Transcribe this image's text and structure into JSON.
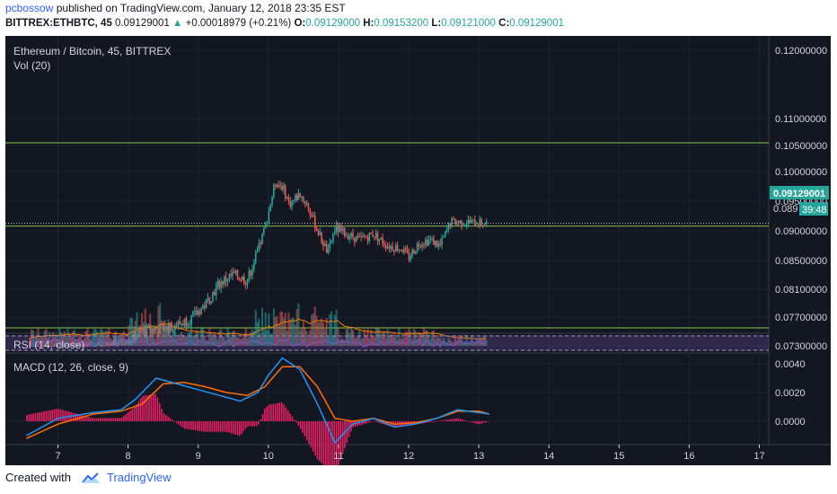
{
  "header": {
    "author": "pcbossow",
    "published": "published on TradingView.com, January 12, 2018 23:35 EST",
    "symbol": "BITTREX:ETHBTC, 45",
    "last": "0.09129001",
    "change": "+0.00018979 (+0.21%)",
    "o_label": "O:",
    "o_value": "0.09129000",
    "h_label": "H:",
    "h_value": "0.09153200",
    "l_label": "L:",
    "l_value": "0.09121000",
    "c_label": "C:",
    "c_value": "0.09129001"
  },
  "panes": {
    "main_title": "Ethereum / Bitcoin, 45, BITTREX",
    "vol_label": "Vol (20)",
    "rsi_label": "RSI (14, close)",
    "macd_label": "MACD (12, 26, close, 9)",
    "price_tag": "0.09129001",
    "time_tag_price": "0.089",
    "time_tag": "39:48"
  },
  "footer": {
    "created": "Created with",
    "brand": "TradingView"
  },
  "colors": {
    "background": "#131722",
    "up": "#26a69a",
    "down": "#ef5350",
    "ma": "#f57c00",
    "macd_line": "#2196f3",
    "signal_line": "#ff6d00",
    "hist": "#e91e63",
    "rsi": "#7e57c2",
    "hline": "#8bc34a"
  },
  "chart_data": {
    "type": "candlestick",
    "symbol": "BITTREX:ETHBTC",
    "interval": "45",
    "x_ticks": [
      "7",
      "8",
      "9",
      "10",
      "11",
      "12",
      "13",
      "14",
      "15",
      "16",
      "17"
    ],
    "price_ticks": [
      "0.12000000",
      "0.11000000",
      "0.10500000",
      "0.10000000",
      "0.09500000",
      "0.09000000",
      "0.08500000",
      "0.08100000",
      "0.07700000",
      "0.07300000"
    ],
    "price_ticks_num": [
      0.12,
      0.11,
      0.105,
      0.1,
      0.095,
      0.09,
      0.085,
      0.081,
      0.077,
      0.073
    ],
    "horizontal_lines": [
      0.1055,
      0.0908,
      0.0755
    ],
    "last_price": 0.09129001,
    "price_path": [
      [
        6.6,
        0.0725
      ],
      [
        7.0,
        0.0722
      ],
      [
        7.5,
        0.0728
      ],
      [
        7.9,
        0.0732
      ],
      [
        8.1,
        0.0745
      ],
      [
        8.3,
        0.0752
      ],
      [
        8.6,
        0.0755
      ],
      [
        8.9,
        0.0768
      ],
      [
        9.1,
        0.0788
      ],
      [
        9.3,
        0.0818
      ],
      [
        9.5,
        0.083
      ],
      [
        9.7,
        0.0822
      ],
      [
        9.85,
        0.0865
      ],
      [
        9.95,
        0.0905
      ],
      [
        10.1,
        0.0982
      ],
      [
        10.2,
        0.0975
      ],
      [
        10.3,
        0.0945
      ],
      [
        10.45,
        0.0962
      ],
      [
        10.55,
        0.0945
      ],
      [
        10.7,
        0.09
      ],
      [
        10.85,
        0.0862
      ],
      [
        10.95,
        0.0905
      ],
      [
        11.1,
        0.0895
      ],
      [
        11.3,
        0.0885
      ],
      [
        11.5,
        0.0895
      ],
      [
        11.7,
        0.0875
      ],
      [
        11.9,
        0.087
      ],
      [
        12.0,
        0.0855
      ],
      [
        12.15,
        0.088
      ],
      [
        12.3,
        0.0885
      ],
      [
        12.45,
        0.0875
      ],
      [
        12.6,
        0.0915
      ],
      [
        12.8,
        0.0915
      ],
      [
        13.0,
        0.0913
      ],
      [
        13.1,
        0.0913
      ]
    ],
    "macd_ticks": [
      "0.0040",
      "0.0020",
      "0.0000"
    ],
    "macd_ticks_num": [
      0.004,
      0.002,
      0.0
    ],
    "macd_path": [
      [
        6.55,
        -0.001
      ],
      [
        7.0,
        0.0002
      ],
      [
        7.5,
        0.0006
      ],
      [
        7.9,
        0.0008
      ],
      [
        8.1,
        0.0015
      ],
      [
        8.4,
        0.003
      ],
      [
        8.7,
        0.0026
      ],
      [
        9.0,
        0.0022
      ],
      [
        9.3,
        0.0018
      ],
      [
        9.6,
        0.0014
      ],
      [
        9.85,
        0.002
      ],
      [
        10.0,
        0.0032
      ],
      [
        10.2,
        0.0044
      ],
      [
        10.45,
        0.0036
      ],
      [
        10.7,
        0.0012
      ],
      [
        10.95,
        -0.0015
      ],
      [
        11.2,
        -0.0002
      ],
      [
        11.5,
        0.0002
      ],
      [
        11.8,
        -0.0004
      ],
      [
        12.1,
        -0.0002
      ],
      [
        12.4,
        0.0002
      ],
      [
        12.7,
        0.0008
      ],
      [
        13.0,
        0.0006
      ],
      [
        13.15,
        0.0005
      ]
    ],
    "signal_path": [
      [
        6.55,
        -0.0012
      ],
      [
        7.0,
        -0.0002
      ],
      [
        7.5,
        0.0005
      ],
      [
        7.9,
        0.0007
      ],
      [
        8.2,
        0.0012
      ],
      [
        8.5,
        0.0026
      ],
      [
        8.8,
        0.0027
      ],
      [
        9.1,
        0.0024
      ],
      [
        9.4,
        0.002
      ],
      [
        9.7,
        0.0018
      ],
      [
        9.95,
        0.0024
      ],
      [
        10.2,
        0.0038
      ],
      [
        10.45,
        0.0038
      ],
      [
        10.7,
        0.0024
      ],
      [
        10.95,
        0.0002
      ],
      [
        11.2,
        0.0
      ],
      [
        11.5,
        0.0002
      ],
      [
        11.8,
        -0.0002
      ],
      [
        12.1,
        -0.0001
      ],
      [
        12.4,
        0.0002
      ],
      [
        12.7,
        0.0007
      ],
      [
        13.0,
        0.0007
      ],
      [
        13.15,
        0.0005
      ]
    ],
    "rsi_range": [
      30,
      70
    ]
  }
}
